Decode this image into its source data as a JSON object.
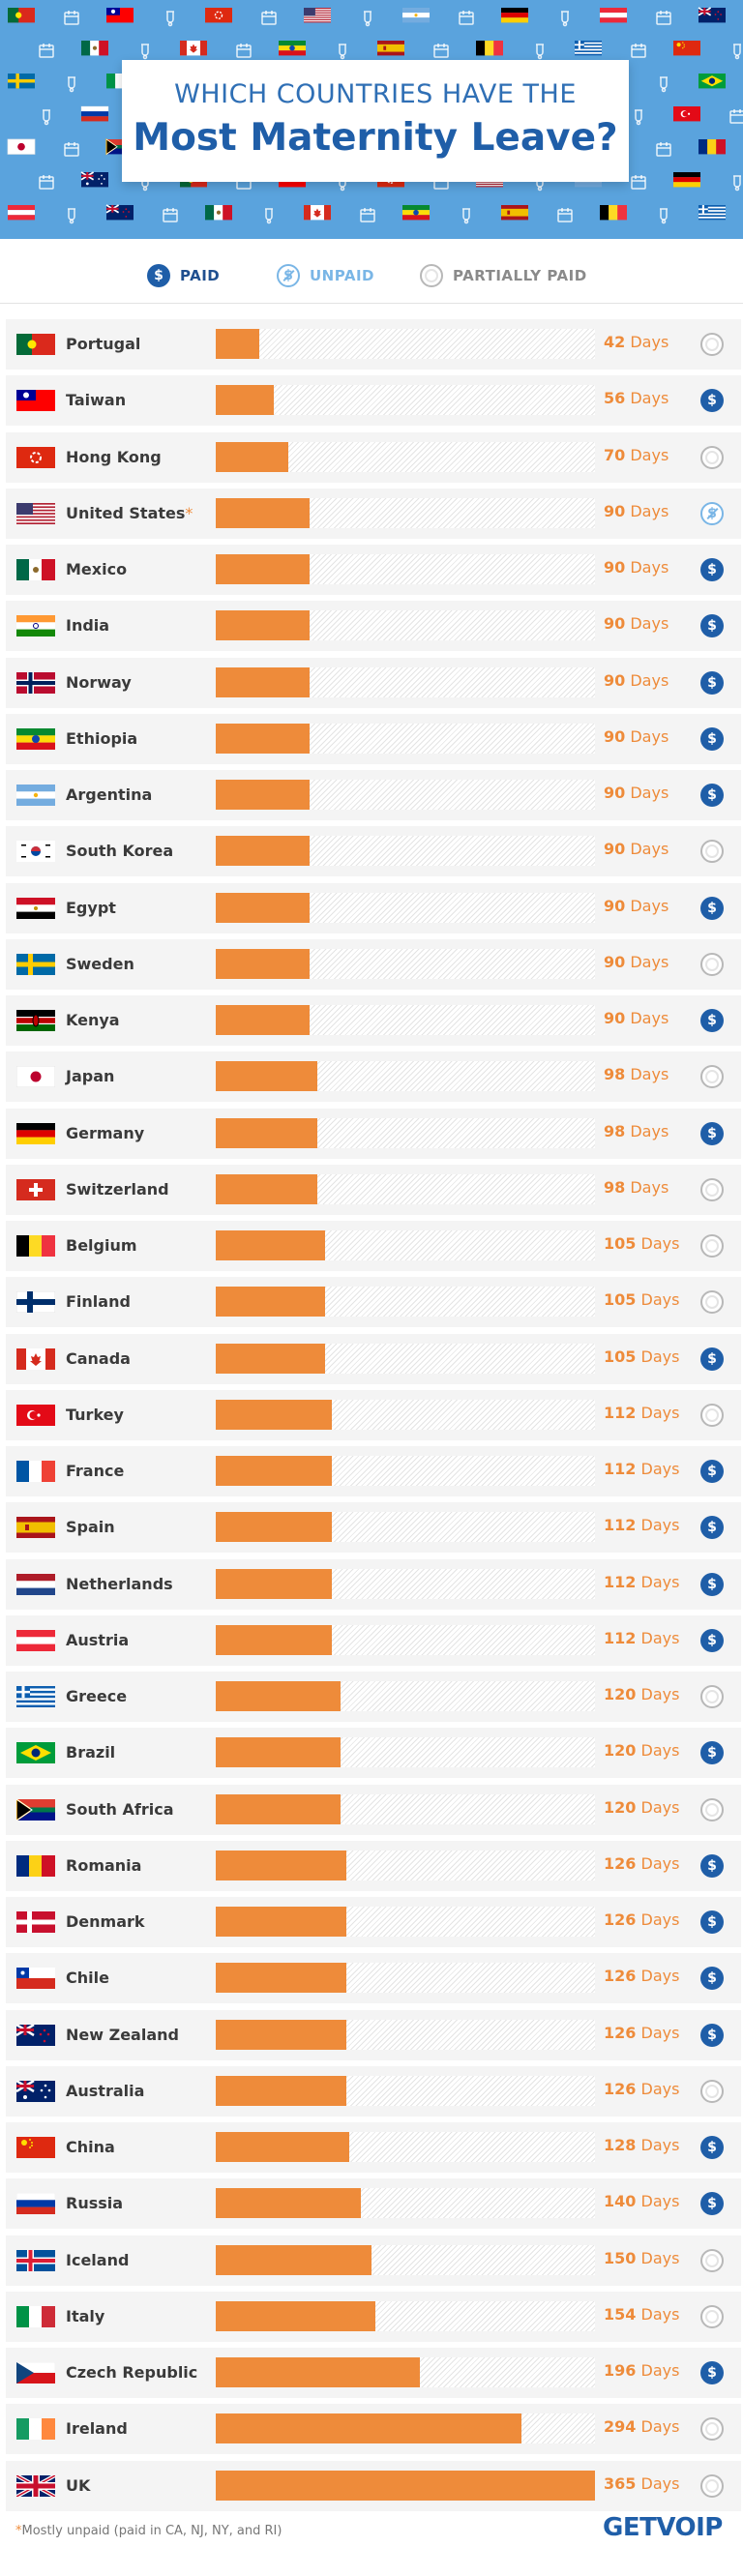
{
  "header": {
    "title_line1": "WHICH COUNTRIES HAVE THE",
    "title_line2": "Most Maternity Leave?"
  },
  "legend": {
    "paid": {
      "label": "PAID",
      "icon": "dollar-coin-icon"
    },
    "unpaid": {
      "label": "UNPAID",
      "icon": "crossed-dollar-icon"
    },
    "partially_paid": {
      "label": "PARTIALLY PAID",
      "icon": "half-coin-icon"
    }
  },
  "colors": {
    "header_bg": "#5aa3dd",
    "bar": "#ee8b3a",
    "paid": "#1f5ea8",
    "unpaid": "#7ab6e6",
    "partial": "#b8b8b8",
    "title": "#1f5ea8"
  },
  "chart_data": {
    "type": "bar",
    "orientation": "horizontal",
    "unit": "Days",
    "xlim": [
      0,
      365
    ],
    "categories": [
      "Portugal",
      "Taiwan",
      "Hong Kong",
      "United States",
      "Mexico",
      "India",
      "Norway",
      "Ethiopia",
      "Argentina",
      "South Korea",
      "Egypt",
      "Sweden",
      "Kenya",
      "Japan",
      "Germany",
      "Switzerland",
      "Belgium",
      "Finland",
      "Canada",
      "Turkey",
      "France",
      "Spain",
      "Netherlands",
      "Austria",
      "Greece",
      "Brazil",
      "South Africa",
      "Romania",
      "Denmark",
      "Chile",
      "New Zealand",
      "Australia",
      "China",
      "Russia",
      "Iceland",
      "Italy",
      "Czech Republic",
      "Ireland",
      "UK"
    ],
    "values": [
      42,
      56,
      70,
      90,
      90,
      90,
      90,
      90,
      90,
      90,
      90,
      90,
      90,
      98,
      98,
      98,
      105,
      105,
      105,
      112,
      112,
      112,
      112,
      112,
      120,
      120,
      120,
      126,
      126,
      126,
      126,
      126,
      128,
      140,
      150,
      154,
      196,
      294,
      365
    ],
    "status": [
      "partial",
      "paid",
      "partial",
      "unpaid",
      "paid",
      "paid",
      "paid",
      "paid",
      "paid",
      "partial",
      "paid",
      "partial",
      "paid",
      "partial",
      "paid",
      "partial",
      "partial",
      "partial",
      "paid",
      "partial",
      "paid",
      "paid",
      "paid",
      "paid",
      "partial",
      "paid",
      "partial",
      "paid",
      "paid",
      "paid",
      "paid",
      "partial",
      "paid",
      "paid",
      "partial",
      "partial",
      "paid",
      "partial",
      "partial"
    ],
    "asterisk": [
      "",
      "",
      "",
      "*",
      "",
      "",
      "",
      "",
      "",
      "",
      "",
      "",
      "",
      "",
      "",
      "",
      "",
      "",
      "",
      "",
      "",
      "",
      "",
      "",
      "",
      "",
      "",
      "",
      "",
      "",
      "",
      "",
      "",
      "",
      "",
      "",
      "",
      "",
      ""
    ]
  },
  "footer": {
    "asterisk": "*",
    "note": "Mostly unpaid (paid in CA, NJ, NY, and RI)",
    "brand": "GETVOIP"
  }
}
